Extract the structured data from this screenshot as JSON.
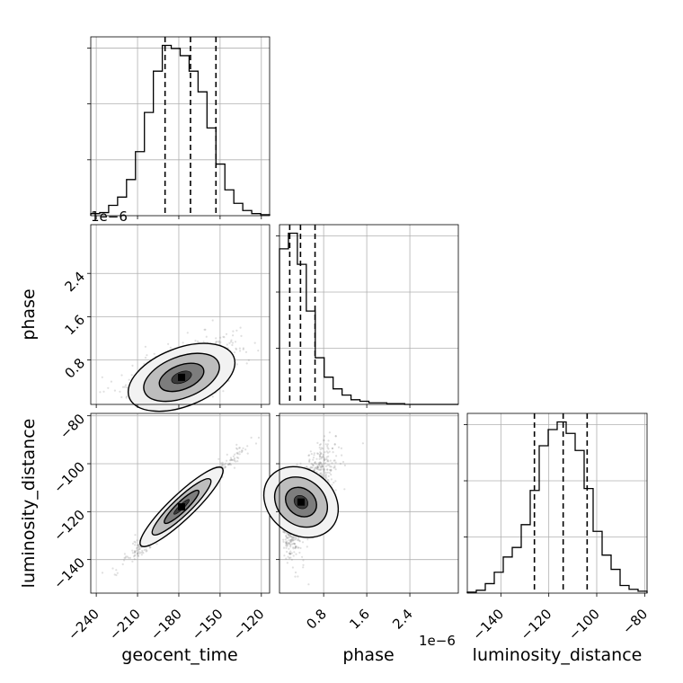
{
  "chart_data": {
    "type": "corner",
    "parameters": [
      "geocent_time",
      "phase",
      "luminosity_distance"
    ],
    "axis_labels": {
      "geocent_time": "geocent_time",
      "phase": "phase",
      "luminosity_distance": "luminosity_distance"
    },
    "axis_offsets": {
      "phase": "1e−6"
    },
    "ranges": {
      "geocent_time": [
        -244,
        -114
      ],
      "phase": [
        -0.02,
        3.3
      ],
      "luminosity_distance": [
        -154,
        -79
      ]
    },
    "ticks": {
      "geocent_time": {
        "values": [
          -240,
          -210,
          -180,
          -150,
          -120
        ],
        "labels": [
          "−240",
          "−210",
          "−180",
          "−150",
          "−120"
        ]
      },
      "phase": {
        "values": [
          0.8,
          1.6,
          2.4
        ],
        "labels": [
          "0.8",
          "1.6",
          "2.4"
        ]
      },
      "luminosity_distance": {
        "values": [
          -140,
          -120,
          -100,
          -80
        ],
        "labels": [
          "−140",
          "−120",
          "−100",
          "−80"
        ]
      }
    },
    "histograms": {
      "geocent_time": {
        "edges": [
          -244,
          -237.5,
          -231,
          -224.5,
          -218,
          -211.5,
          -205,
          -198.5,
          -192,
          -185.5,
          -179,
          -172.5,
          -166,
          -159.5,
          -153,
          -146.5,
          -140,
          -133.5,
          -127,
          -120.5,
          -114
        ],
        "counts": [
          2,
          3,
          10,
          18,
          35,
          62,
          100,
          140,
          165,
          162,
          155,
          140,
          120,
          85,
          50,
          25,
          12,
          5,
          2,
          1
        ],
        "quantiles": [
          -190,
          -171.5,
          -153
        ]
      },
      "phase": {
        "edges": [
          -0.02,
          0.146,
          0.312,
          0.478,
          0.644,
          0.81,
          0.976,
          1.142,
          1.308,
          1.474,
          1.64,
          1.806,
          1.972,
          2.138,
          2.304,
          2.47,
          2.636,
          2.802,
          2.968,
          3.134,
          3.3
        ],
        "counts": [
          200,
          220,
          180,
          120,
          60,
          35,
          20,
          12,
          6,
          4,
          2,
          2,
          1,
          1,
          0,
          0,
          0,
          0,
          0,
          0
        ],
        "quantiles": [
          0.17,
          0.37,
          0.64
        ]
      },
      "luminosity_distance": {
        "edges": [
          -154,
          -150.25,
          -146.5,
          -142.75,
          -139,
          -135.25,
          -131.5,
          -127.75,
          -124,
          -120.25,
          -116.5,
          -112.75,
          -109,
          -105.25,
          -101.5,
          -97.75,
          -94,
          -90.25,
          -86.5,
          -82.75,
          -79
        ],
        "counts": [
          1,
          3,
          10,
          22,
          38,
          48,
          72,
          108,
          155,
          172,
          180,
          168,
          150,
          110,
          65,
          40,
          25,
          8,
          4,
          2
        ],
        "quantiles": [
          -126,
          -114,
          -104
        ]
      }
    },
    "grid": true,
    "colors": {
      "line": "#000000",
      "grid": "#b0b0b0",
      "scatter": "#7f7f7f"
    }
  }
}
